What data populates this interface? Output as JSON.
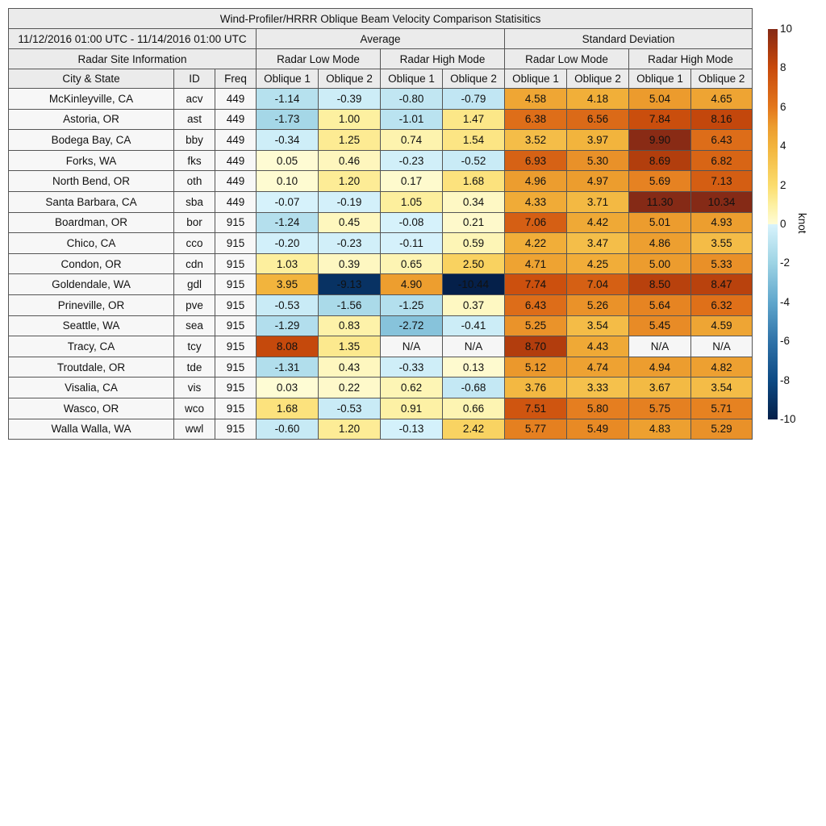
{
  "chart_data": {
    "type": "table",
    "title": "Wind-Profiler/HRRR Oblique Beam Velocity Comparison Statisitics",
    "period": "11/12/2016 01:00 UTC - 11/14/2016 01:00 UTC",
    "groups": [
      "Average",
      "Standard Deviation"
    ],
    "modes": [
      "Radar Low Mode",
      "Radar High Mode",
      "Radar Low Mode",
      "Radar High Mode"
    ],
    "site_header": "Radar Site Information",
    "columns": [
      "City & State",
      "ID",
      "Freq",
      "Oblique 1",
      "Oblique 2",
      "Oblique 1",
      "Oblique 2",
      "Oblique 1",
      "Oblique 2",
      "Oblique 1",
      "Oblique 2"
    ],
    "rows": [
      {
        "city": "McKinleyville, CA",
        "id": "acv",
        "freq": "449",
        "values": [
          "-1.14",
          "-0.39",
          "-0.80",
          "-0.79",
          "4.58",
          "4.18",
          "5.04",
          "4.65"
        ]
      },
      {
        "city": "Astoria, OR",
        "id": "ast",
        "freq": "449",
        "values": [
          "-1.73",
          "1.00",
          "-1.01",
          "1.47",
          "6.38",
          "6.56",
          "7.84",
          "8.16"
        ]
      },
      {
        "city": "Bodega Bay, CA",
        "id": "bby",
        "freq": "449",
        "values": [
          "-0.34",
          "1.25",
          "0.74",
          "1.54",
          "3.52",
          "3.97",
          "9.90",
          "6.43"
        ]
      },
      {
        "city": "Forks, WA",
        "id": "fks",
        "freq": "449",
        "values": [
          "0.05",
          "0.46",
          "-0.23",
          "-0.52",
          "6.93",
          "5.30",
          "8.69",
          "6.82"
        ]
      },
      {
        "city": "North Bend, OR",
        "id": "oth",
        "freq": "449",
        "values": [
          "0.10",
          "1.20",
          "0.17",
          "1.68",
          "4.96",
          "4.97",
          "5.69",
          "7.13"
        ]
      },
      {
        "city": "Santa Barbara, CA",
        "id": "sba",
        "freq": "449",
        "values": [
          "-0.07",
          "-0.19",
          "1.05",
          "0.34",
          "4.33",
          "3.71",
          "11.30",
          "10.34"
        ]
      },
      {
        "city": "Boardman, OR",
        "id": "bor",
        "freq": "915",
        "values": [
          "-1.24",
          "0.45",
          "-0.08",
          "0.21",
          "7.06",
          "4.42",
          "5.01",
          "4.93"
        ]
      },
      {
        "city": "Chico, CA",
        "id": "cco",
        "freq": "915",
        "values": [
          "-0.20",
          "-0.23",
          "-0.11",
          "0.59",
          "4.22",
          "3.47",
          "4.86",
          "3.55"
        ]
      },
      {
        "city": "Condon, OR",
        "id": "cdn",
        "freq": "915",
        "values": [
          "1.03",
          "0.39",
          "0.65",
          "2.50",
          "4.71",
          "4.25",
          "5.00",
          "5.33"
        ]
      },
      {
        "city": "Goldendale, WA",
        "id": "gdl",
        "freq": "915",
        "values": [
          "3.95",
          "-9.13",
          "4.90",
          "-10.44",
          "7.74",
          "7.04",
          "8.50",
          "8.47"
        ]
      },
      {
        "city": "Prineville, OR",
        "id": "pve",
        "freq": "915",
        "values": [
          "-0.53",
          "-1.56",
          "-1.25",
          "0.37",
          "6.43",
          "5.26",
          "5.64",
          "6.32"
        ]
      },
      {
        "city": "Seattle, WA",
        "id": "sea",
        "freq": "915",
        "values": [
          "-1.29",
          "0.83",
          "-2.72",
          "-0.41",
          "5.25",
          "3.54",
          "5.45",
          "4.59"
        ]
      },
      {
        "city": "Tracy, CA",
        "id": "tcy",
        "freq": "915",
        "values": [
          "8.08",
          "1.35",
          "N/A",
          "N/A",
          "8.70",
          "4.43",
          "N/A",
          "N/A"
        ]
      },
      {
        "city": "Troutdale, OR",
        "id": "tde",
        "freq": "915",
        "values": [
          "-1.31",
          "0.43",
          "-0.33",
          "0.13",
          "5.12",
          "4.74",
          "4.94",
          "4.82"
        ]
      },
      {
        "city": "Visalia, CA",
        "id": "vis",
        "freq": "915",
        "values": [
          "0.03",
          "0.22",
          "0.62",
          "-0.68",
          "3.76",
          "3.33",
          "3.67",
          "3.54"
        ]
      },
      {
        "city": "Wasco, OR",
        "id": "wco",
        "freq": "915",
        "values": [
          "1.68",
          "-0.53",
          "0.91",
          "0.66",
          "7.51",
          "5.80",
          "5.75",
          "5.71"
        ]
      },
      {
        "city": "Walla Walla, WA",
        "id": "wwl",
        "freq": "915",
        "values": [
          "-0.60",
          "1.20",
          "-0.13",
          "2.42",
          "5.77",
          "5.49",
          "4.83",
          "5.29"
        ]
      }
    ],
    "colorbar": {
      "label": "knot",
      "range": [
        -10,
        10
      ],
      "ticks": [
        "10",
        "8",
        "6",
        "4",
        "2",
        "0",
        "-2",
        "-4",
        "-6",
        "-8",
        "-10"
      ],
      "stops": [
        [
          -10,
          "#05204a"
        ],
        [
          -8,
          "#0d4a84"
        ],
        [
          -6,
          "#2f72a8"
        ],
        [
          -4,
          "#5fa6cc"
        ],
        [
          -2,
          "#9dd3e4"
        ],
        [
          -0.01,
          "#d8f3fc"
        ],
        [
          0,
          "#fefcd6"
        ],
        [
          1,
          "#fdf0a0"
        ],
        [
          2,
          "#fbdc6c"
        ],
        [
          4,
          "#f2b33c"
        ],
        [
          5,
          "#ec9c2e"
        ],
        [
          6,
          "#e3771c"
        ],
        [
          8,
          "#c84a0c"
        ],
        [
          9,
          "#a8380e"
        ],
        [
          10,
          "#852a16"
        ]
      ],
      "na_color": "#f6f6f6"
    }
  }
}
